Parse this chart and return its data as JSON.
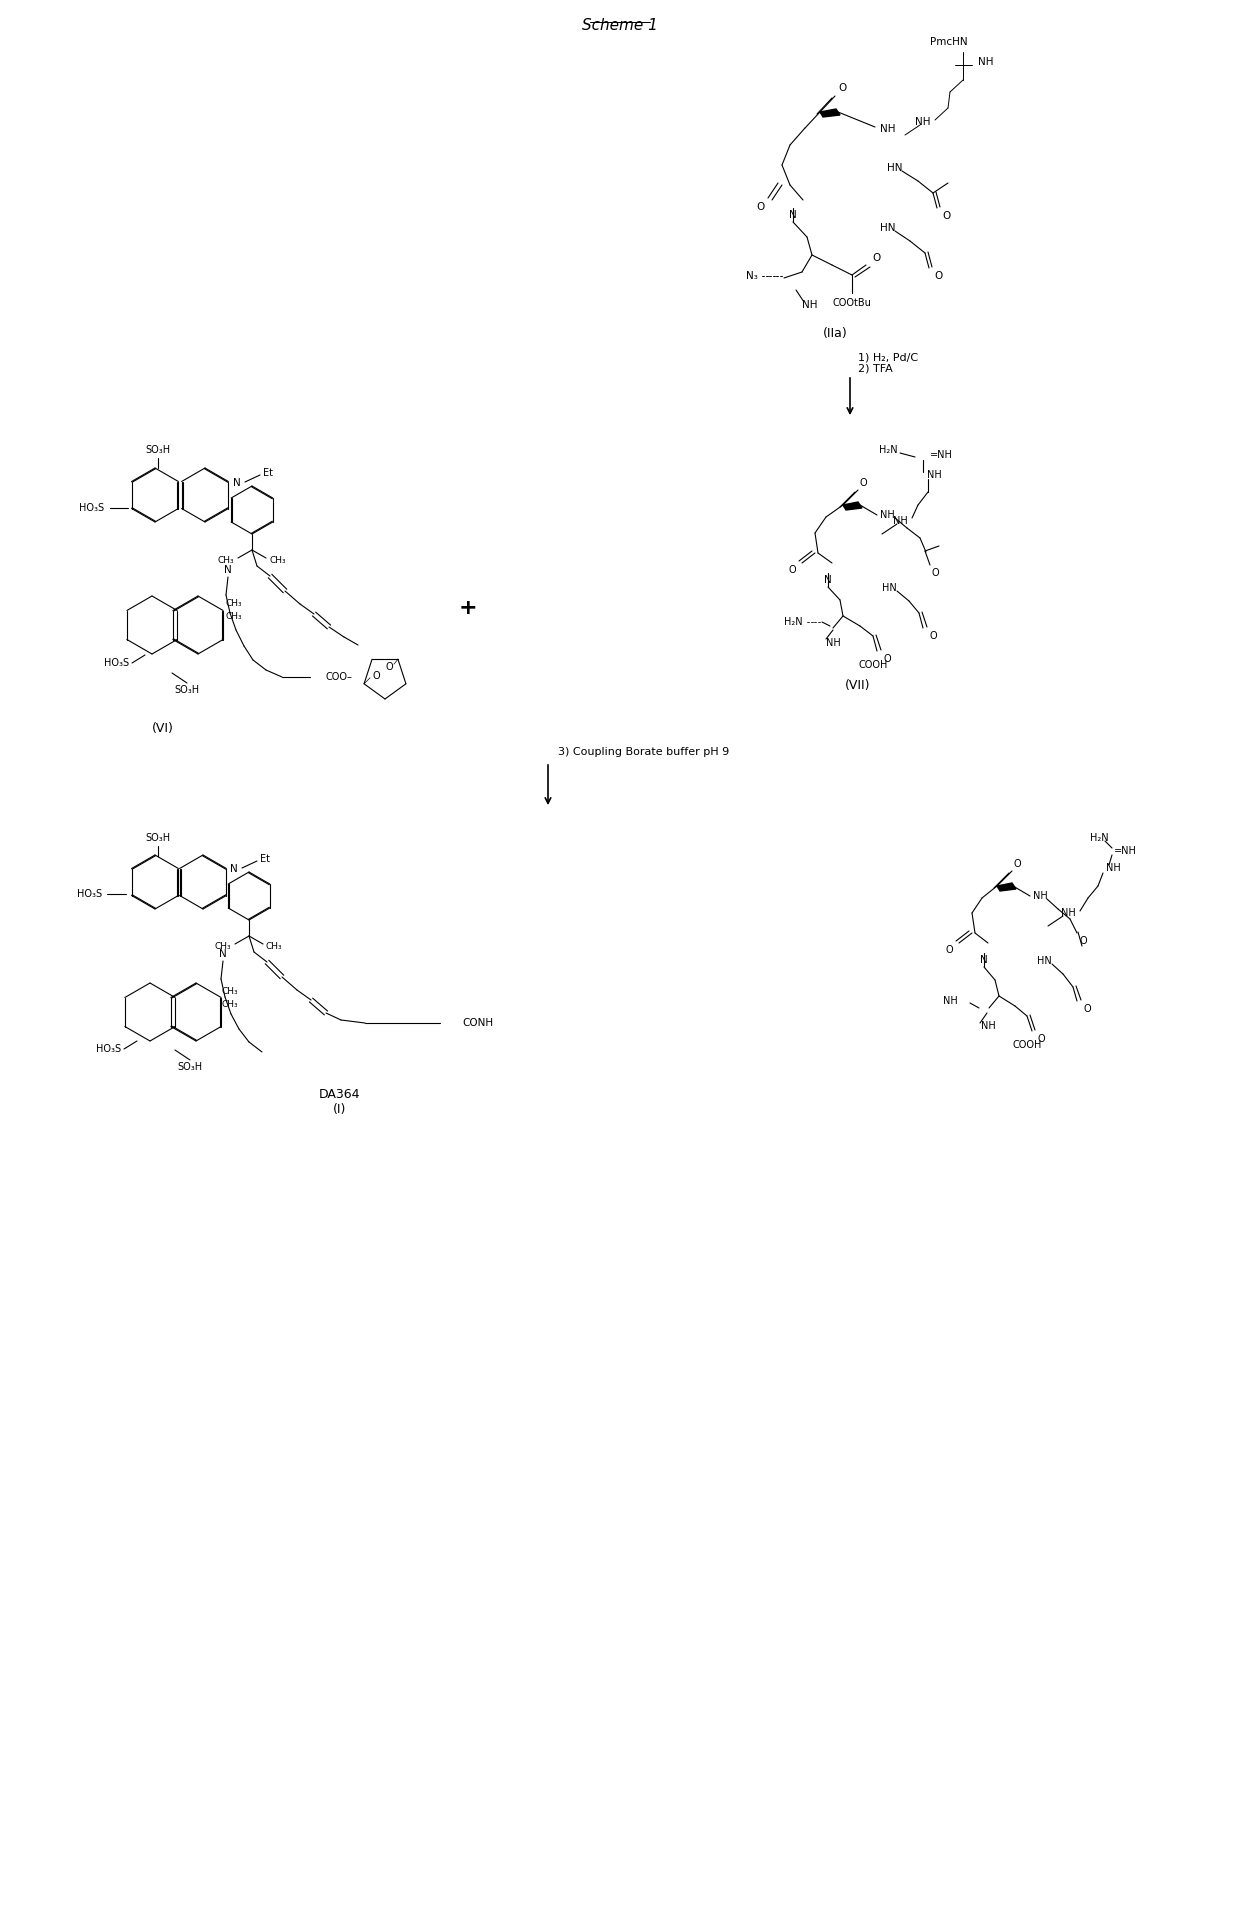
{
  "title": "Scheme 1",
  "bg_color": "#ffffff",
  "text_color": "#000000",
  "figsize": [
    12.4,
    19.17
  ],
  "dpi": 100,
  "scheme_title": "Scheme 1",
  "compound_IIa_label": "(IIa)",
  "compound_VI_label": "(VI)",
  "compound_VII_label": "(VII)",
  "compound_final_label": "DA364\n(I)",
  "reaction1_text": "1) H₂, Pd/C\n2) TFA",
  "reaction2_text": "3) Coupling Borate buffer pH 9",
  "plus_sign": "+",
  "font_size_title": 11,
  "font_size_label": 9,
  "font_size_reaction": 8,
  "arrow_color": "#000000",
  "line_color": "#000000",
  "line_width": 0.8
}
